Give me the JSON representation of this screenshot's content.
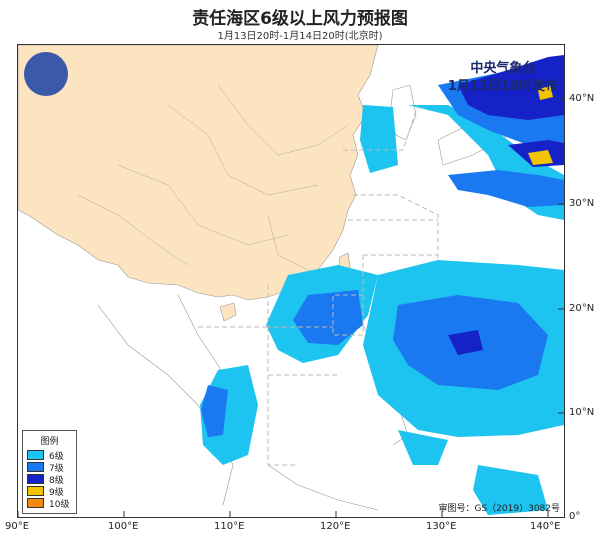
{
  "header": {
    "title": "责任海区6级以上风力预报图",
    "subtitle": "1月13日20时-1月14日20时(北京时)"
  },
  "agency": {
    "name": "中央气象台",
    "issued": "1月11日18时发布"
  },
  "axes": {
    "lat_labels": [
      "40°N",
      "30°N",
      "20°N",
      "10°N",
      "0°"
    ],
    "lon_labels": [
      "90°E",
      "100°E",
      "110°E",
      "120°E",
      "130°E",
      "140°E"
    ]
  },
  "legend": {
    "title": "图例",
    "items": [
      {
        "label": "6级",
        "color": "#1ec4f0"
      },
      {
        "label": "7级",
        "color": "#1a78f0"
      },
      {
        "label": "8级",
        "color": "#1522c8"
      },
      {
        "label": "9级",
        "color": "#f2c400"
      },
      {
        "label": "10级",
        "color": "#f08a10"
      }
    ]
  },
  "footer": {
    "approval": "审图号：GS（2019）3082号"
  },
  "colors": {
    "land_china": "#fde4c0",
    "land_other": "#ffffff",
    "sea": "#ffffff"
  },
  "icons": {
    "logo": "cma-logo-icon"
  }
}
